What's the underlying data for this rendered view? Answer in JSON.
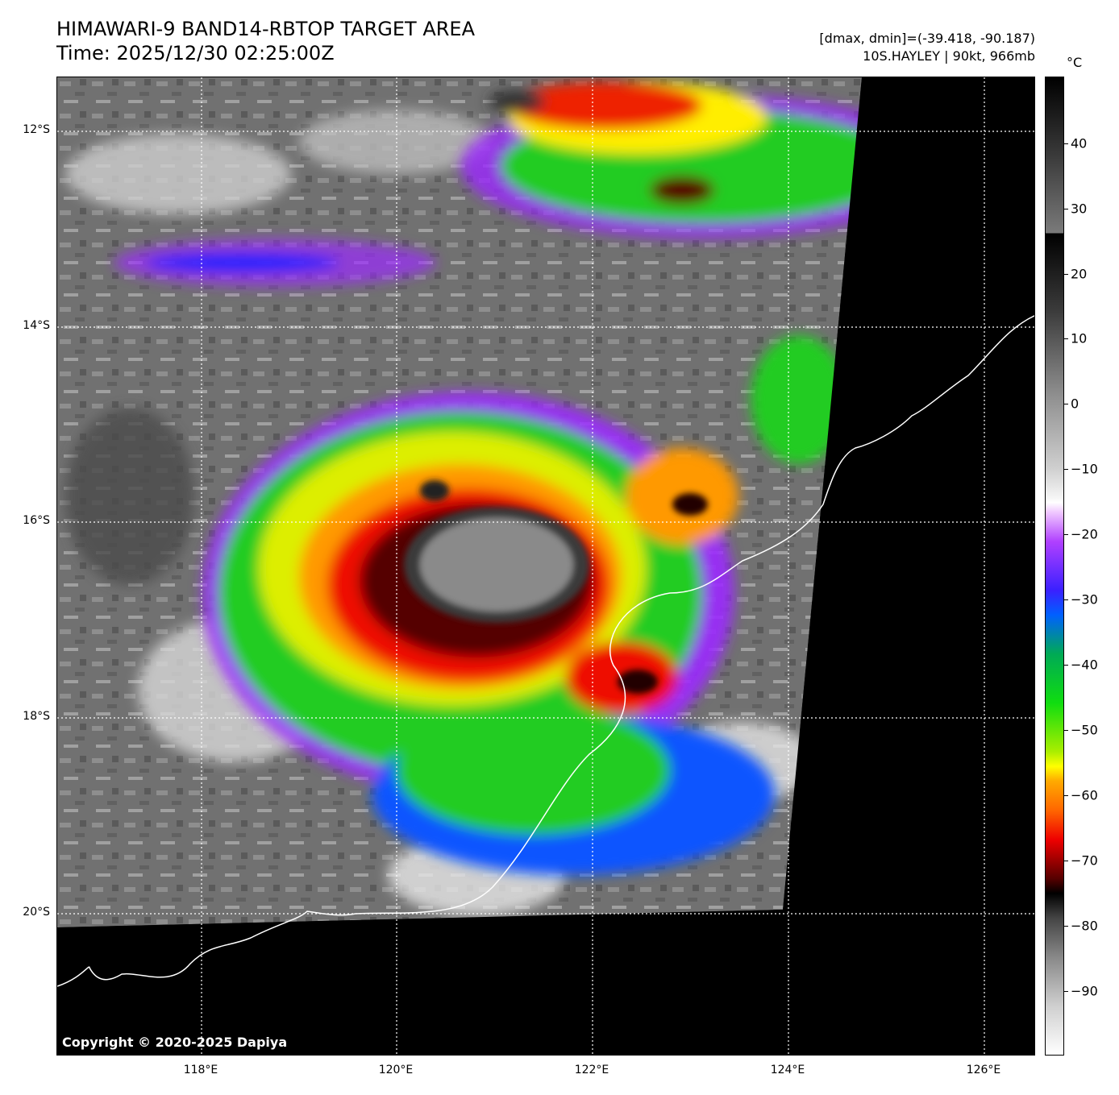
{
  "header": {
    "title_line1": "HIMAWARI-9 BAND14-RBTOP TARGET AREA",
    "title_line2": "Time: 2025/12/30 02:25:00Z",
    "range_text": "[dmax, dmin]=(-39.418, -90.187)",
    "storm_text": "10S.HAYLEY | 90kt, 966mb"
  },
  "map": {
    "copyright": "Copyright © 2020-2025 Dapiya",
    "lat_labels": [
      "12°S",
      "14°S",
      "16°S",
      "18°S",
      "20°S"
    ],
    "lon_labels": [
      "118°E",
      "120°E",
      "122°E",
      "124°E",
      "126°E"
    ]
  },
  "colorbar": {
    "unit": "°C",
    "ticks": [
      "40",
      "30",
      "20",
      "10",
      "0",
      "−10",
      "−20",
      "−30",
      "−40",
      "−50",
      "−60",
      "−70",
      "−80",
      "−90"
    ]
  }
}
